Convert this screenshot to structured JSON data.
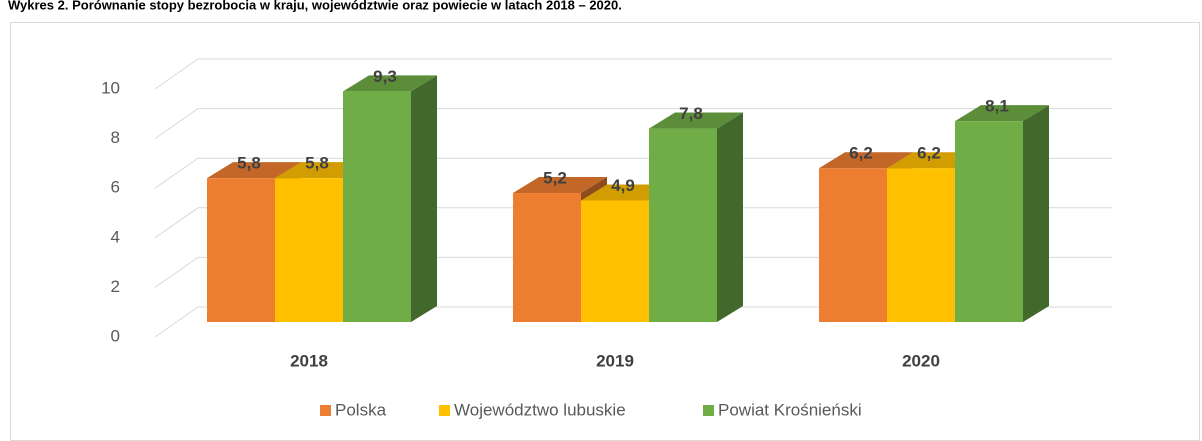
{
  "chart_data": {
    "type": "bar3d",
    "title": "Wykres 2. Porównanie stopy bezrobocia w kraju, województwie oraz powiecie w latach 2018 – 2020.",
    "categories": [
      "2018",
      "2019",
      "2020"
    ],
    "series": [
      {
        "name": "Polska",
        "color": "#ed7d31",
        "values": [
          5.8,
          5.2,
          6.2
        ],
        "value_labels": [
          "5,8",
          "5,2",
          "6,2"
        ]
      },
      {
        "name": "Województwo lubuskie",
        "color": "#ffc000",
        "values": [
          5.8,
          4.9,
          6.2
        ],
        "value_labels": [
          "5,8",
          "4,9",
          "6,2"
        ]
      },
      {
        "name": "Powiat Krośnieński",
        "color": "#70ad47",
        "values": [
          9.3,
          7.8,
          8.1
        ],
        "value_labels": [
          "9,3",
          "7,8",
          "8,1"
        ]
      }
    ],
    "ylim": [
      0,
      10
    ],
    "yticks": [
      0,
      2,
      4,
      6,
      8,
      10
    ],
    "grid": true,
    "legend": "bottom"
  }
}
